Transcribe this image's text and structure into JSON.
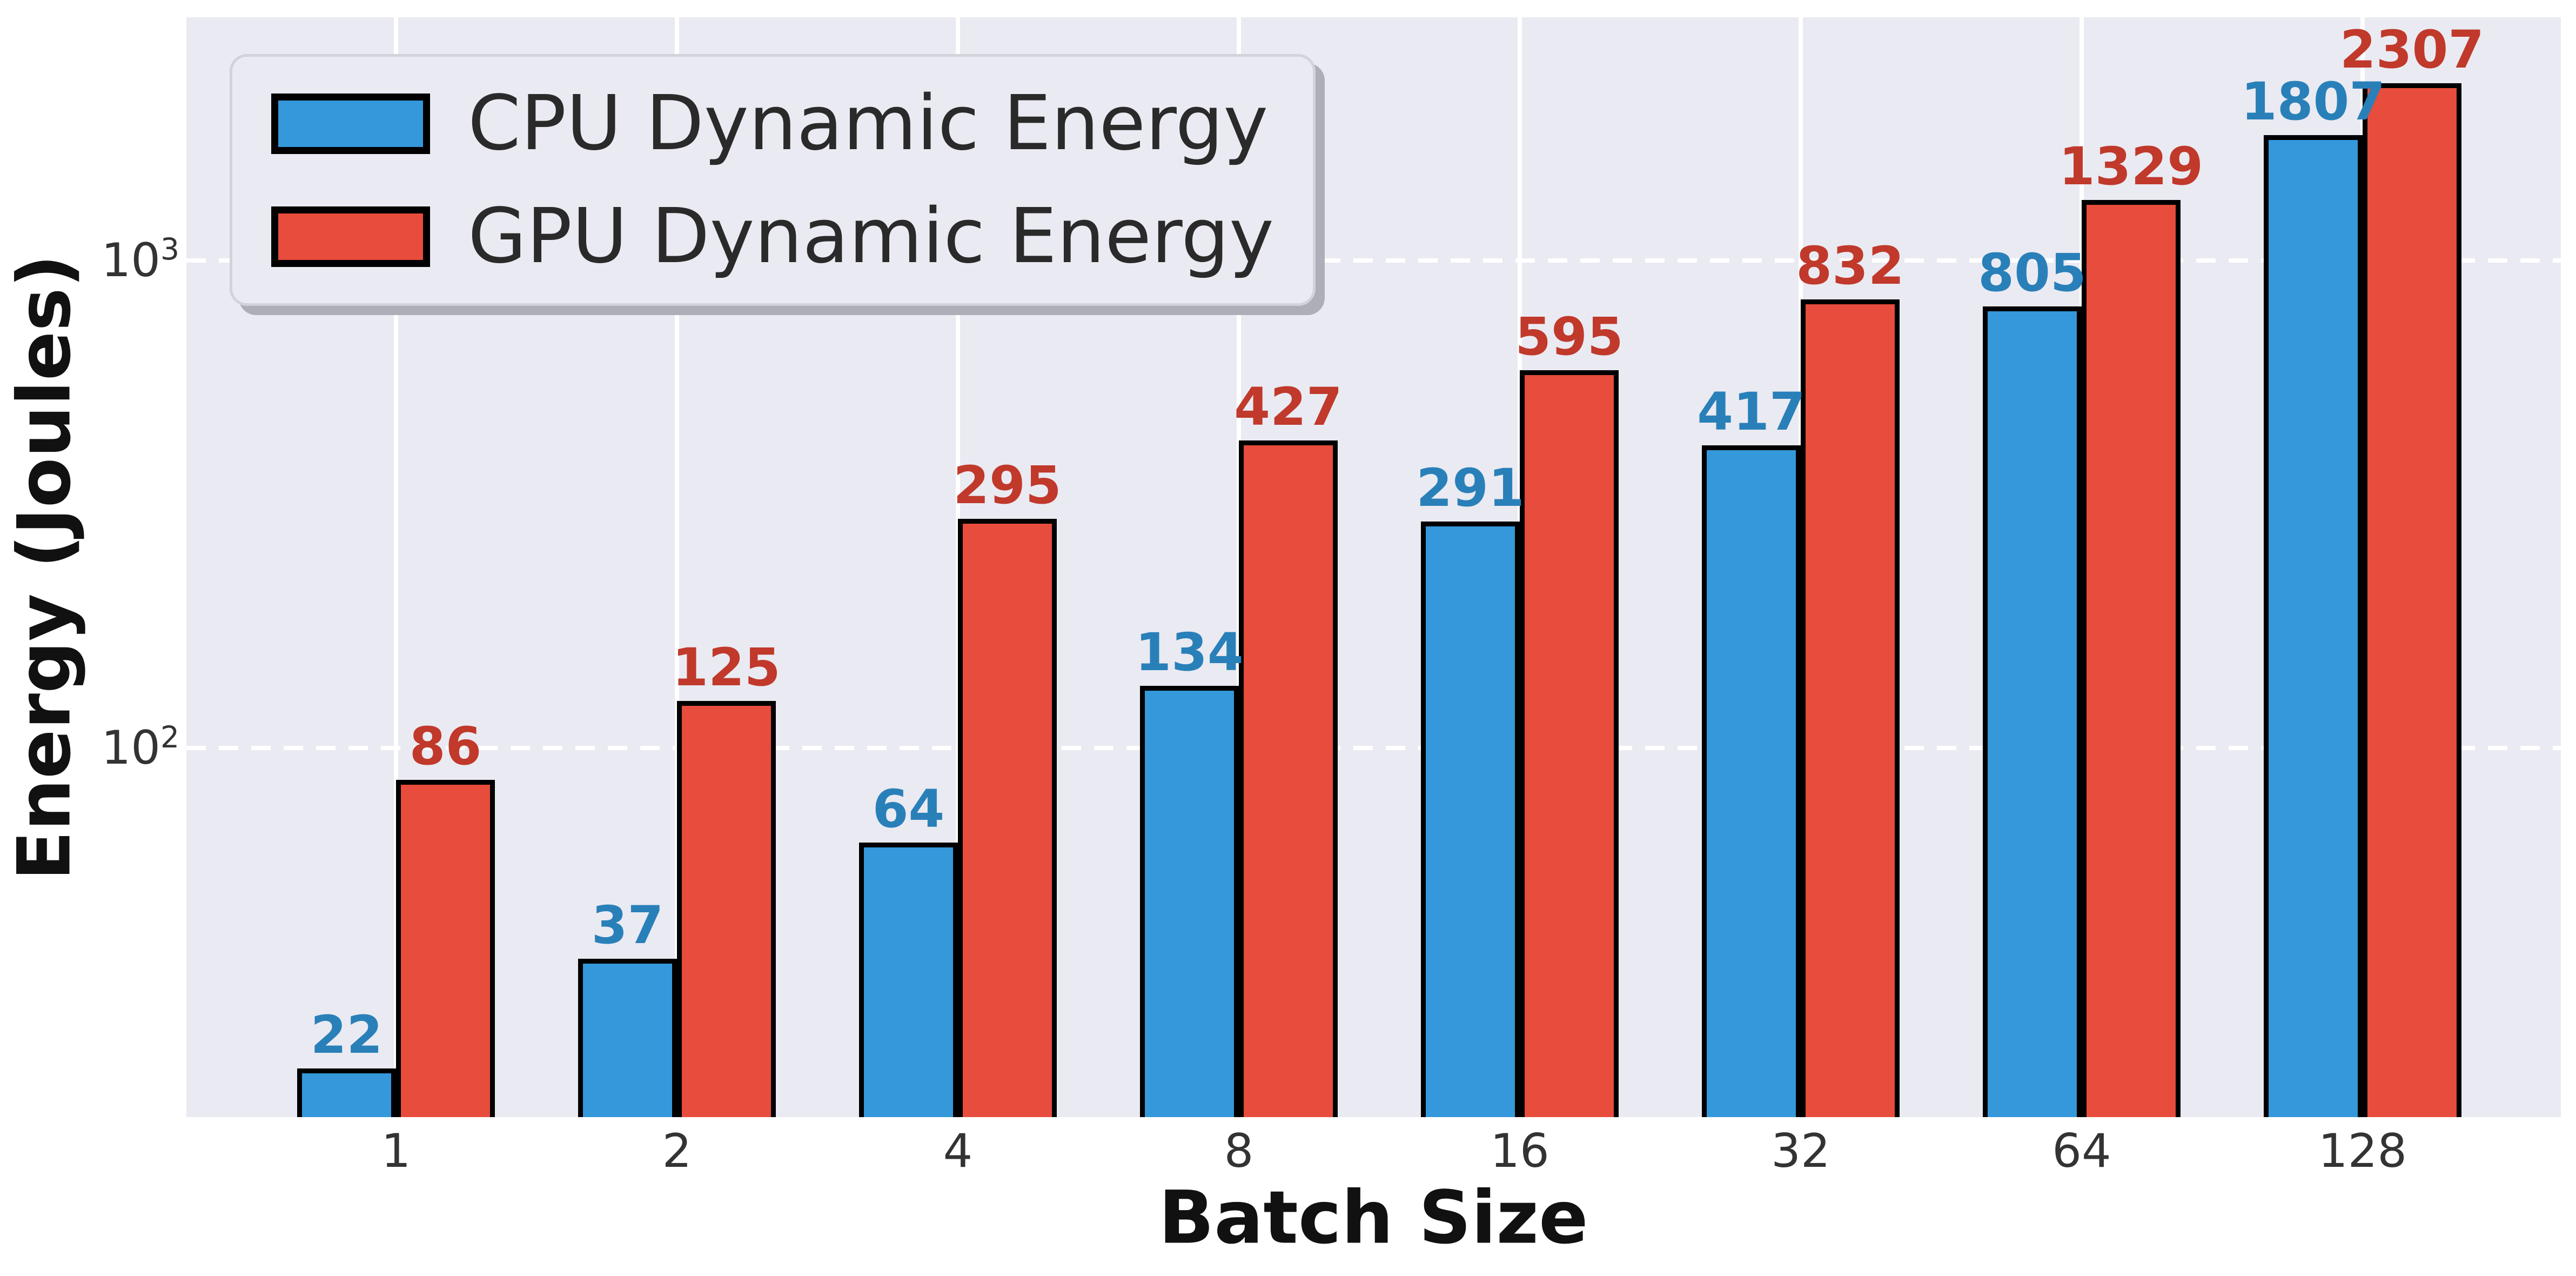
{
  "chart_data": {
    "type": "bar",
    "title": "",
    "xlabel": "Batch Size",
    "ylabel": "Energy (Joules)",
    "yscale": "log",
    "categories": [
      "1",
      "2",
      "4",
      "8",
      "16",
      "32",
      "64",
      "128"
    ],
    "series": [
      {
        "name": "CPU Dynamic Energy",
        "values": [
          22,
          37,
          64,
          134,
          291,
          417,
          805,
          1807
        ],
        "bar_color": "#3498db",
        "label_color": "#2980b9"
      },
      {
        "name": "GPU Dynamic Energy",
        "values": [
          86,
          125,
          295,
          427,
          595,
          832,
          1329,
          2307
        ],
        "bar_color": "#e74c3c",
        "label_color": "#c0392b"
      }
    ],
    "y_ticks": [
      {
        "base": "10",
        "exp": "2",
        "value": 100
      },
      {
        "base": "10",
        "exp": "3",
        "value": 1000
      }
    ],
    "ylim": [
      17.5,
      3150
    ],
    "legend_position": "upper left",
    "grid": {
      "vertical": "solid",
      "horizontal": "dashed"
    },
    "bar_edge_color": "#000000",
    "plot_background": "#eaeaf2",
    "grid_color": "#ffffff",
    "tick_color": "#333333",
    "axis_label_color": "#111111",
    "legend_text_color": "#2a2a2a"
  }
}
